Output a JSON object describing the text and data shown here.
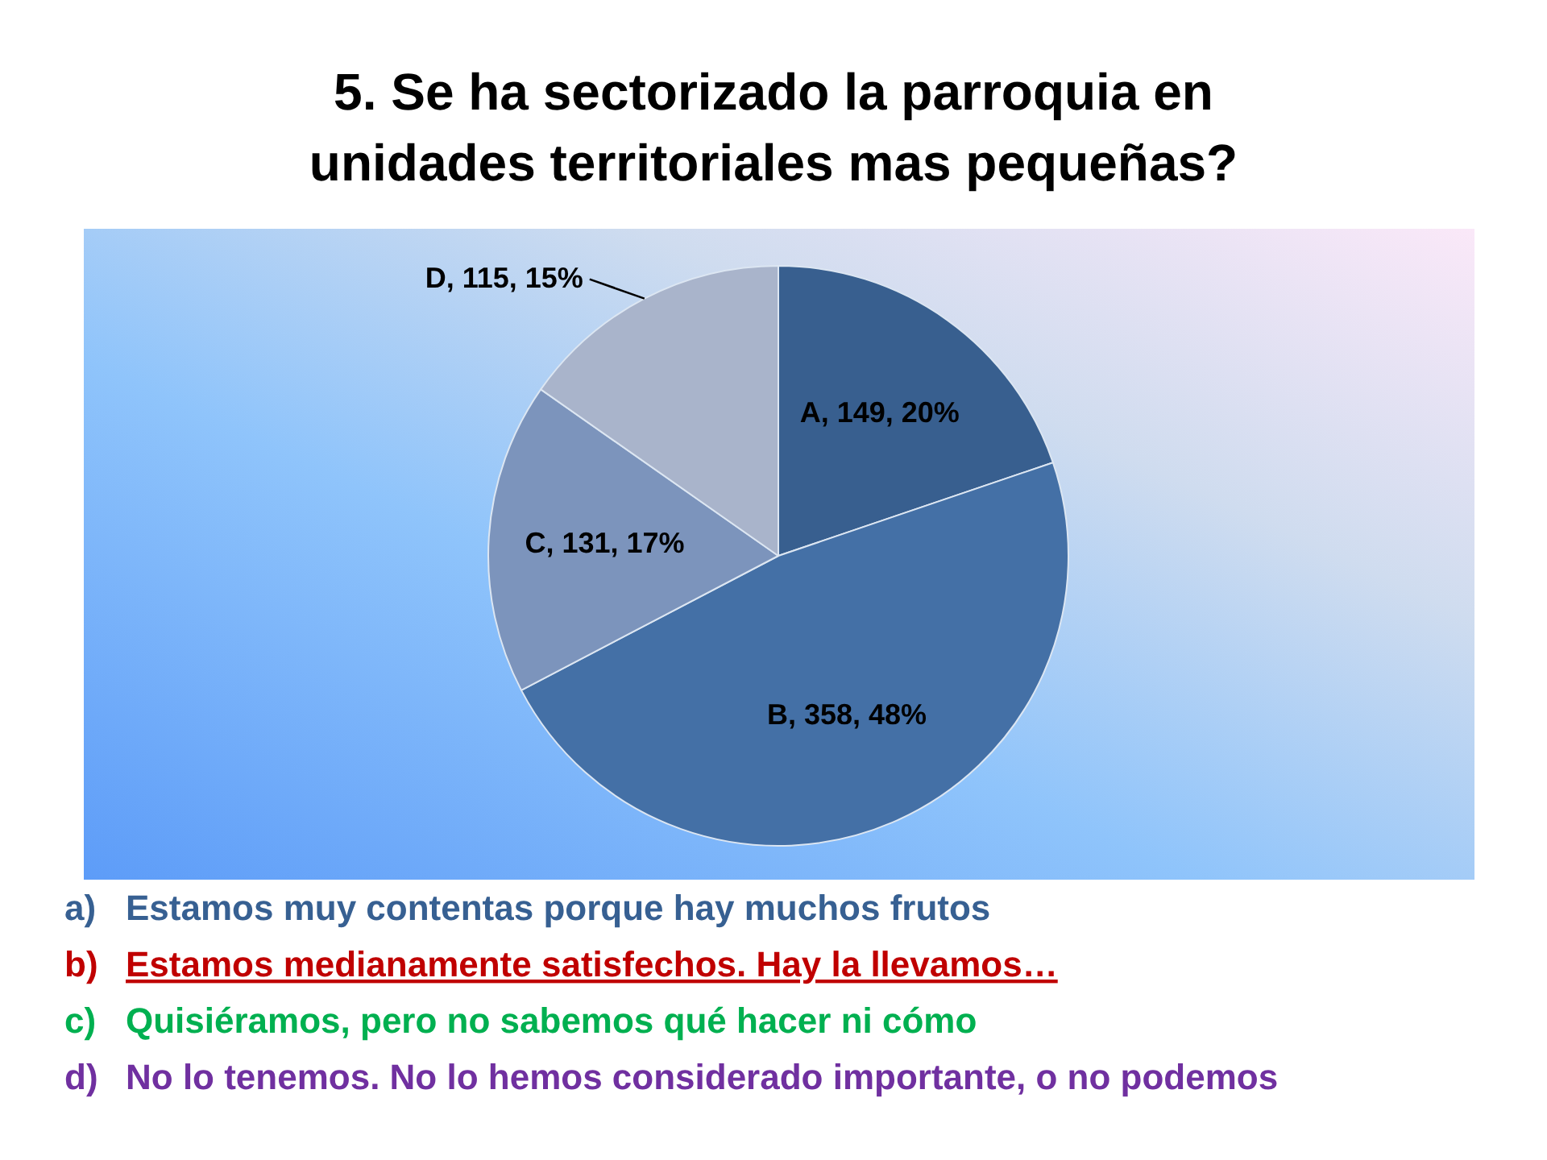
{
  "chart_data": {
    "type": "pie",
    "title": "5. Se ha sectorizado la parroquia en unidades territoriales mas pequeñas?",
    "categories": [
      null,
      null,
      null,
      null
    ],
    "values": [
      149,
      358,
      131,
      115
    ],
    "value_labels": [
      "A, 149, 20%",
      "B, 358, 48%",
      "C, 131, 17%",
      "D, 115, 15%"
    ],
    "colors": [
      "#385f8f",
      "#4470a6",
      "#7c94bc",
      "#a9b4cb"
    ],
    "annotations": [
      "a) Estamos muy contentas porque hay muchos frutos",
      "b) Estamos medianamente satisfechos. Hay la llevamos…",
      "c) Quisiéramos, pero no sabemos qué hacer ni cómo",
      "d) No lo tenemos. No lo hemos considerado importante, o no podemos"
    ]
  }
}
